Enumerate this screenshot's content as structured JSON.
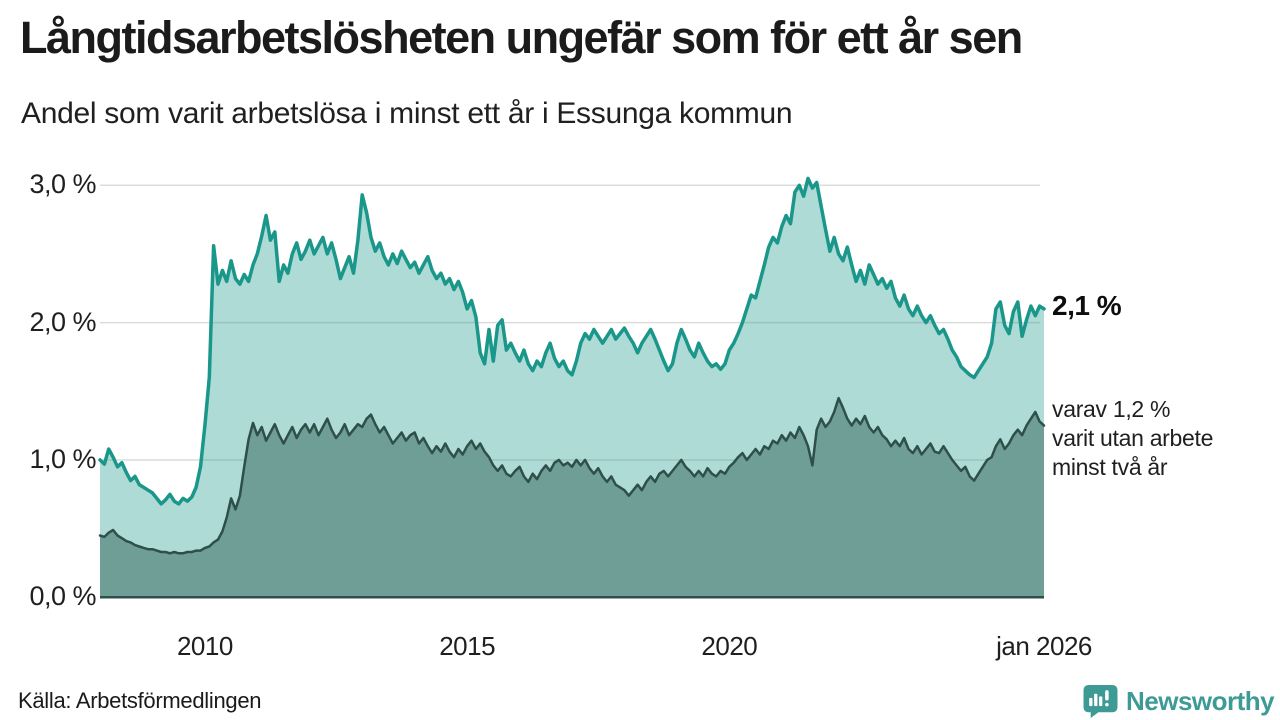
{
  "header": {
    "title": "Långtidsarbetslösheten ungefär som för ett år sen",
    "subtitle": "Andel som varit arbetslösa i minst ett år i Essunga kommun"
  },
  "annotations": {
    "latest_value": "2,1 %",
    "secondary_lines": [
      "varav 1,2 %",
      "varit utan arbete",
      "minst två år"
    ]
  },
  "footer": {
    "source": "Källa: Arbetsförmedlingen",
    "brand": "Newsworthy"
  },
  "colors": {
    "line_total": "#1a978a",
    "fill_total": "rgba(26,151,138,0.35)",
    "line_two_years": "#2f4f4a",
    "fill_two_years": "#6f9e97",
    "grid": "#dcdcdc",
    "baseline": "#2f4f4a",
    "brand_teal": "#3d9a94",
    "text": "#1b1b1b"
  },
  "chart_data": {
    "type": "area",
    "title": "Långtidsarbetslösheten ungefär som för ett år sen",
    "subtitle": "Andel som varit arbetslösa i minst ett år i Essunga kommun",
    "unit": "%",
    "x_start": 2008.0,
    "x_step_months": 1,
    "x_end_label": "jan 2026",
    "ylim": [
      0,
      3.2
    ],
    "grid": true,
    "x_ticks": [
      {
        "x": 2010,
        "label": "2010"
      },
      {
        "x": 2015,
        "label": "2015"
      },
      {
        "x": 2020,
        "label": "2020"
      },
      {
        "x": 2026,
        "label": "jan 2026"
      }
    ],
    "y_ticks": [
      {
        "v": 0,
        "label": "0,0 %"
      },
      {
        "v": 1,
        "label": "1,0 %"
      },
      {
        "v": 2,
        "label": "2,0 %"
      },
      {
        "v": 3,
        "label": "3,0 %"
      }
    ],
    "series": [
      {
        "name": "arbetslosa-minst-ett-ar",
        "label": "Andel arbetslösa i minst ett år",
        "end_value": 2.1,
        "values": [
          1.0,
          0.97,
          1.08,
          1.02,
          0.95,
          0.98,
          0.91,
          0.85,
          0.88,
          0.82,
          0.8,
          0.78,
          0.76,
          0.72,
          0.68,
          0.71,
          0.75,
          0.7,
          0.68,
          0.72,
          0.7,
          0.73,
          0.8,
          0.95,
          1.25,
          1.6,
          2.56,
          2.28,
          2.38,
          2.3,
          2.45,
          2.32,
          2.28,
          2.35,
          2.3,
          2.42,
          2.5,
          2.63,
          2.78,
          2.6,
          2.66,
          2.3,
          2.42,
          2.36,
          2.5,
          2.58,
          2.46,
          2.52,
          2.6,
          2.5,
          2.56,
          2.62,
          2.5,
          2.58,
          2.46,
          2.32,
          2.4,
          2.48,
          2.36,
          2.6,
          2.93,
          2.8,
          2.62,
          2.52,
          2.58,
          2.48,
          2.42,
          2.5,
          2.43,
          2.52,
          2.46,
          2.4,
          2.44,
          2.36,
          2.42,
          2.48,
          2.38,
          2.32,
          2.36,
          2.28,
          2.32,
          2.24,
          2.3,
          2.22,
          2.1,
          2.16,
          2.04,
          1.78,
          1.7,
          1.95,
          1.72,
          1.98,
          2.02,
          1.8,
          1.85,
          1.78,
          1.72,
          1.8,
          1.7,
          1.65,
          1.72,
          1.68,
          1.78,
          1.85,
          1.74,
          1.68,
          1.72,
          1.65,
          1.62,
          1.72,
          1.85,
          1.92,
          1.88,
          1.95,
          1.9,
          1.85,
          1.9,
          1.95,
          1.88,
          1.92,
          1.96,
          1.9,
          1.85,
          1.78,
          1.85,
          1.9,
          1.95,
          1.88,
          1.8,
          1.72,
          1.65,
          1.7,
          1.85,
          1.95,
          1.88,
          1.8,
          1.75,
          1.85,
          1.78,
          1.72,
          1.68,
          1.7,
          1.66,
          1.7,
          1.8,
          1.85,
          1.92,
          2.0,
          2.1,
          2.2,
          2.18,
          2.3,
          2.42,
          2.55,
          2.62,
          2.58,
          2.7,
          2.78,
          2.72,
          2.95,
          3.0,
          2.92,
          3.05,
          2.98,
          3.02,
          2.85,
          2.68,
          2.52,
          2.62,
          2.5,
          2.45,
          2.55,
          2.42,
          2.3,
          2.38,
          2.28,
          2.42,
          2.35,
          2.28,
          2.32,
          2.25,
          2.3,
          2.18,
          2.12,
          2.2,
          2.1,
          2.05,
          2.12,
          2.05,
          2.0,
          2.05,
          1.98,
          1.92,
          1.95,
          1.88,
          1.8,
          1.75,
          1.68,
          1.65,
          1.62,
          1.6,
          1.65,
          1.7,
          1.75,
          1.85,
          2.1,
          2.15,
          1.98,
          1.92,
          2.08,
          2.15,
          1.9,
          2.02,
          2.12,
          2.05,
          2.12,
          2.1
        ]
      },
      {
        "name": "utan-arbete-minst-tva-ar",
        "label": "varav utan arbete minst två år",
        "end_value": 1.2,
        "values": [
          0.45,
          0.44,
          0.47,
          0.49,
          0.45,
          0.43,
          0.41,
          0.4,
          0.38,
          0.37,
          0.36,
          0.35,
          0.35,
          0.34,
          0.33,
          0.33,
          0.32,
          0.33,
          0.32,
          0.32,
          0.33,
          0.33,
          0.34,
          0.34,
          0.36,
          0.37,
          0.4,
          0.42,
          0.48,
          0.58,
          0.72,
          0.64,
          0.74,
          0.95,
          1.15,
          1.27,
          1.18,
          1.24,
          1.14,
          1.2,
          1.26,
          1.18,
          1.12,
          1.18,
          1.24,
          1.16,
          1.22,
          1.26,
          1.2,
          1.26,
          1.18,
          1.24,
          1.3,
          1.22,
          1.16,
          1.2,
          1.26,
          1.18,
          1.22,
          1.26,
          1.24,
          1.3,
          1.33,
          1.26,
          1.2,
          1.24,
          1.18,
          1.12,
          1.16,
          1.2,
          1.14,
          1.18,
          1.2,
          1.12,
          1.16,
          1.1,
          1.05,
          1.1,
          1.06,
          1.12,
          1.06,
          1.02,
          1.08,
          1.04,
          1.1,
          1.14,
          1.08,
          1.12,
          1.06,
          1.02,
          0.96,
          0.92,
          0.96,
          0.9,
          0.88,
          0.92,
          0.95,
          0.88,
          0.84,
          0.9,
          0.86,
          0.92,
          0.96,
          0.92,
          0.98,
          1.0,
          0.96,
          0.98,
          0.95,
          1.0,
          0.96,
          1.0,
          0.94,
          0.9,
          0.94,
          0.88,
          0.84,
          0.88,
          0.82,
          0.8,
          0.78,
          0.74,
          0.78,
          0.82,
          0.78,
          0.84,
          0.88,
          0.84,
          0.9,
          0.92,
          0.88,
          0.92,
          0.96,
          1.0,
          0.95,
          0.92,
          0.88,
          0.92,
          0.88,
          0.94,
          0.9,
          0.88,
          0.92,
          0.9,
          0.95,
          0.98,
          1.02,
          1.05,
          1.0,
          1.04,
          1.08,
          1.04,
          1.1,
          1.08,
          1.14,
          1.12,
          1.18,
          1.14,
          1.2,
          1.16,
          1.24,
          1.18,
          1.1,
          0.96,
          1.22,
          1.3,
          1.24,
          1.28,
          1.35,
          1.45,
          1.38,
          1.3,
          1.25,
          1.3,
          1.26,
          1.32,
          1.24,
          1.2,
          1.24,
          1.18,
          1.15,
          1.1,
          1.14,
          1.1,
          1.16,
          1.08,
          1.05,
          1.1,
          1.04,
          1.08,
          1.12,
          1.06,
          1.05,
          1.1,
          1.05,
          1.0,
          0.96,
          0.92,
          0.95,
          0.88,
          0.85,
          0.9,
          0.95,
          1.0,
          1.02,
          1.1,
          1.15,
          1.08,
          1.12,
          1.18,
          1.22,
          1.18,
          1.25,
          1.3,
          1.35,
          1.28,
          1.25
        ]
      }
    ]
  }
}
